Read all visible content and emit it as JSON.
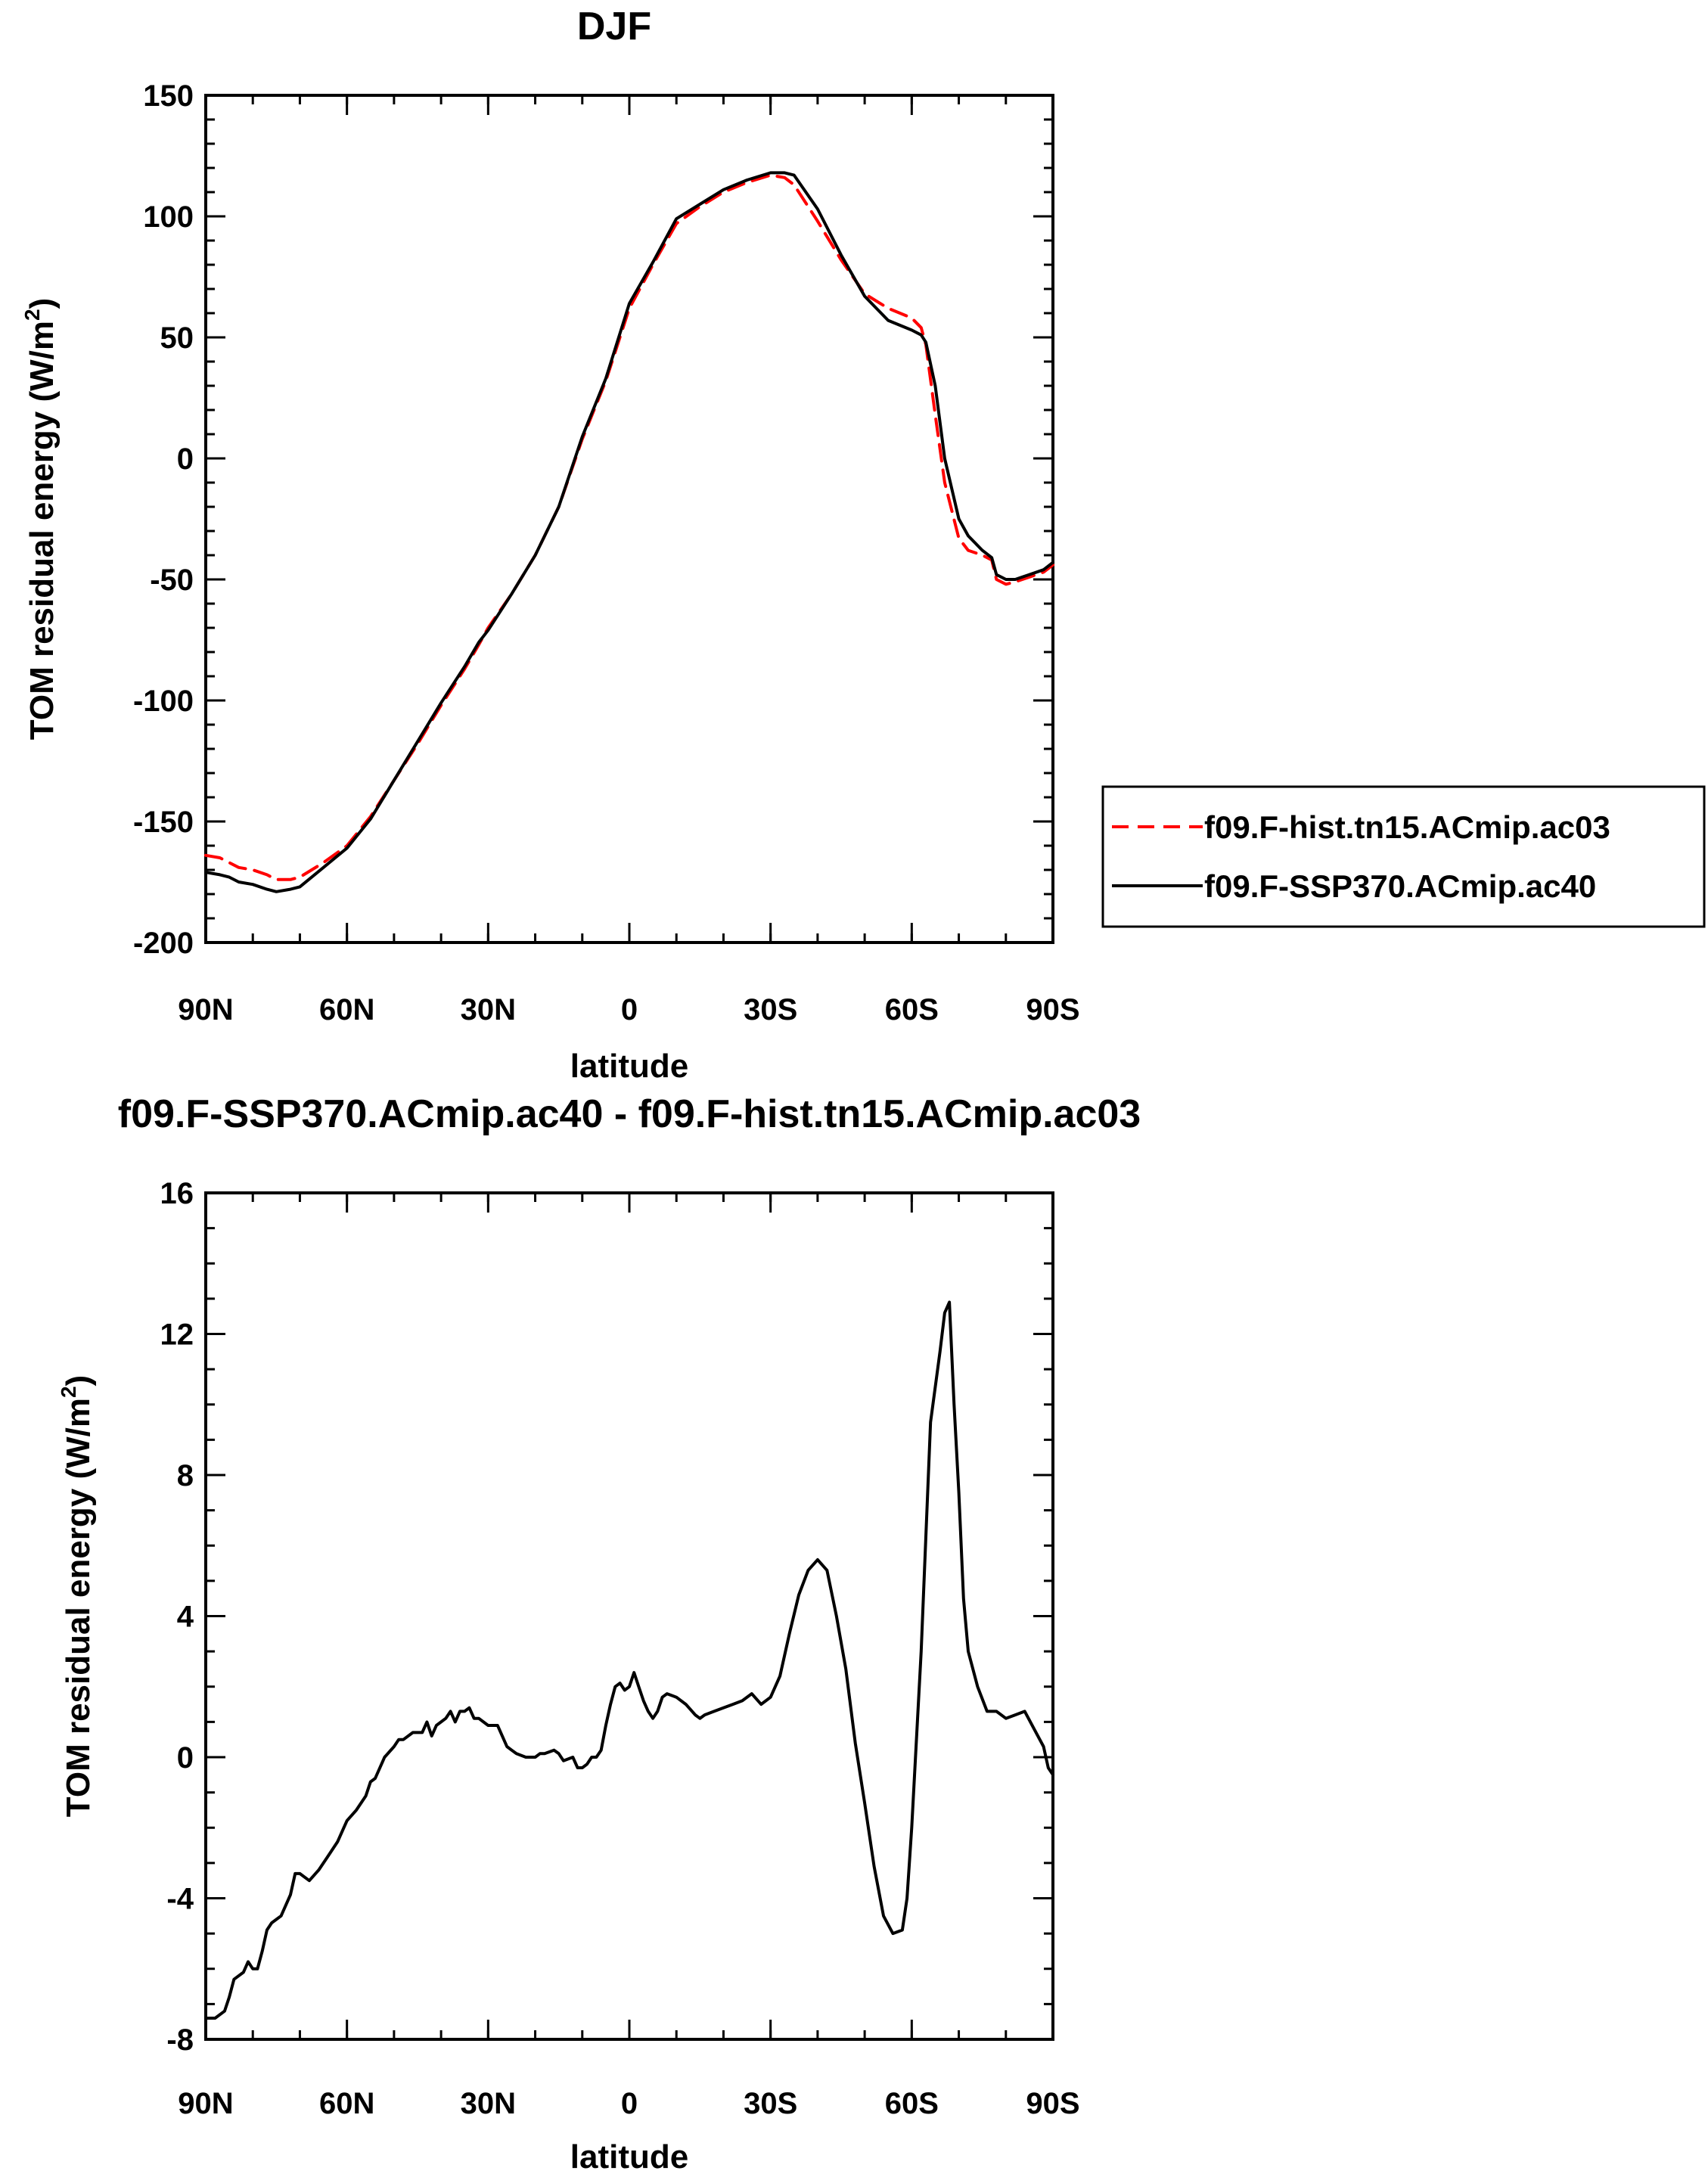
{
  "chart_data": [
    {
      "type": "line",
      "title": "DJF",
      "xlabel": "latitude",
      "ylabel": "TOM residual energy (W/m",
      "ylabel_superscript": "2",
      "ylabel_close": ")",
      "xlim": [
        90,
        -90
      ],
      "ylim": [
        -200,
        150
      ],
      "x_ticks": [
        90,
        60,
        30,
        0,
        -30,
        -60,
        -90
      ],
      "x_tick_labels": [
        "90N",
        "60N",
        "30N",
        "0",
        "30S",
        "60S",
        "90S"
      ],
      "y_ticks": [
        -200,
        -150,
        -100,
        -50,
        0,
        50,
        100,
        150
      ],
      "y_tick_labels": [
        "-200",
        "-150",
        "-100",
        "-50",
        "0",
        "50",
        "100",
        "150"
      ],
      "y_minor_step": 10,
      "x_minor_step": 10,
      "legend_position": "right-lower-outside",
      "series": [
        {
          "name": "f09.F-hist.tn15.ACmip.ac03",
          "color": "#ff0000",
          "dash": "dashed",
          "x": [
            90,
            87,
            85,
            83,
            80,
            77,
            75,
            72,
            70,
            65,
            60,
            55,
            50,
            45,
            40,
            35,
            32,
            30,
            25,
            20,
            15,
            10,
            5,
            0,
            -5,
            -10,
            -15,
            -20,
            -25,
            -30,
            -33,
            -35,
            -40,
            -45,
            -50,
            -55,
            -60,
            -62,
            -63,
            -65,
            -67,
            -70,
            -72,
            -75,
            -77,
            -78,
            -80,
            -82,
            -85,
            -88,
            -90
          ],
          "values": [
            -164,
            -165,
            -167,
            -169,
            -170,
            -172,
            -174,
            -174,
            -173,
            -167,
            -160,
            -148,
            -133,
            -118,
            -102,
            -87,
            -77,
            -70,
            -56,
            -40,
            -20,
            8,
            32,
            62,
            80,
            97,
            104,
            110,
            114,
            117,
            116,
            113,
            98,
            82,
            68,
            62,
            58,
            54,
            47,
            18,
            -10,
            -33,
            -38,
            -40,
            -42,
            -50,
            -52,
            -51,
            -49,
            -47,
            -44
          ]
        },
        {
          "name": "f09.F-SSP370.ACmip.ac40",
          "color": "#000000",
          "dash": "solid",
          "x": [
            90,
            87,
            85,
            83,
            80,
            77,
            75,
            72,
            70,
            65,
            60,
            55,
            50,
            45,
            40,
            35,
            32,
            30,
            25,
            20,
            15,
            10,
            5,
            0,
            -5,
            -10,
            -15,
            -20,
            -25,
            -30,
            -33,
            -35,
            -40,
            -45,
            -50,
            -55,
            -60,
            -62,
            -63,
            -65,
            -67,
            -70,
            -72,
            -75,
            -77,
            -78,
            -80,
            -82,
            -85,
            -88,
            -90
          ],
          "values": [
            -171,
            -172,
            -173,
            -175,
            -176,
            -178,
            -179,
            -178,
            -177,
            -169,
            -161,
            -149,
            -133,
            -117,
            -101,
            -86,
            -76,
            -71,
            -56,
            -40,
            -20,
            9,
            33,
            64,
            81,
            99,
            105,
            111,
            115,
            118,
            118,
            117,
            103,
            84,
            67,
            57,
            53,
            51,
            48,
            30,
            0,
            -25,
            -32,
            -38,
            -41,
            -48,
            -50,
            -50,
            -48,
            -46,
            -43
          ]
        }
      ]
    },
    {
      "type": "line",
      "title": "f09.F-SSP370.ACmip.ac40 - f09.F-hist.tn15.ACmip.ac03",
      "xlabel": "latitude",
      "ylabel": "TOM residual energy (W/m",
      "ylabel_superscript": "2",
      "ylabel_close": ")",
      "xlim": [
        90,
        -90
      ],
      "ylim": [
        -8,
        16
      ],
      "x_ticks": [
        90,
        60,
        30,
        0,
        -30,
        -60,
        -90
      ],
      "x_tick_labels": [
        "90N",
        "60N",
        "30N",
        "0",
        "30S",
        "60S",
        "90S"
      ],
      "y_ticks": [
        -8,
        -4,
        0,
        4,
        8,
        12,
        16
      ],
      "y_tick_labels": [
        "-8",
        "-4",
        "0",
        "4",
        "8",
        "12",
        "16"
      ],
      "y_minor_step": 1,
      "x_minor_step": 10,
      "series": [
        {
          "name": "f09.F-SSP370.ACmip.ac40 - f09.F-hist.tn15.ACmip.ac03",
          "color": "#000000",
          "dash": "solid",
          "x": [
            90,
            88,
            86,
            85,
            84,
            82,
            81,
            80,
            79,
            78,
            77,
            76,
            75,
            74,
            72,
            71,
            70,
            68,
            66,
            64,
            62,
            60,
            58,
            56,
            55,
            54,
            52,
            50,
            49,
            48,
            46,
            45,
            44,
            43,
            42,
            41,
            40,
            39,
            38,
            37,
            36,
            35,
            34,
            33,
            32,
            30,
            28,
            26,
            25,
            24,
            22,
            20,
            19,
            18,
            16,
            15,
            14,
            12,
            11,
            10,
            9,
            8,
            7,
            6,
            5,
            4,
            3,
            2,
            1,
            0,
            -1,
            -2,
            -3,
            -4,
            -5,
            -6,
            -7,
            -8,
            -10,
            -12,
            -14,
            -15,
            -16,
            -18,
            -20,
            -22,
            -24,
            -26,
            -28,
            -30,
            -32,
            -34,
            -36,
            -38,
            -40,
            -42,
            -44,
            -46,
            -48,
            -50,
            -52,
            -54,
            -56,
            -58,
            -59,
            -60,
            -62,
            -64,
            -66,
            -67,
            -68,
            -69,
            -70,
            -71,
            -72,
            -74,
            -76,
            -78,
            -80,
            -82,
            -84,
            -86,
            -88,
            -89,
            -90
          ],
          "values": [
            -7.4,
            -7.4,
            -7.2,
            -6.8,
            -6.3,
            -6.1,
            -5.8,
            -6.0,
            -6.0,
            -5.5,
            -4.9,
            -4.7,
            -4.6,
            -4.5,
            -3.9,
            -3.3,
            -3.3,
            -3.5,
            -3.2,
            -2.8,
            -2.4,
            -1.8,
            -1.5,
            -1.1,
            -0.7,
            -0.6,
            0.0,
            0.3,
            0.5,
            0.5,
            0.7,
            0.7,
            0.7,
            1.0,
            0.6,
            0.9,
            1.0,
            1.1,
            1.3,
            1.0,
            1.3,
            1.3,
            1.4,
            1.1,
            1.1,
            0.9,
            0.9,
            0.3,
            0.2,
            0.1,
            0.0,
            0.0,
            0.1,
            0.1,
            0.2,
            0.1,
            -0.1,
            0.0,
            -0.3,
            -0.3,
            -0.2,
            0.0,
            0.0,
            0.2,
            0.9,
            1.5,
            2.0,
            2.1,
            1.9,
            2.0,
            2.4,
            2.0,
            1.6,
            1.3,
            1.1,
            1.3,
            1.7,
            1.8,
            1.7,
            1.5,
            1.2,
            1.1,
            1.2,
            1.3,
            1.4,
            1.5,
            1.6,
            1.8,
            1.5,
            1.7,
            2.3,
            3.5,
            4.6,
            5.3,
            5.6,
            5.3,
            4.0,
            2.5,
            0.4,
            -1.3,
            -3.1,
            -4.5,
            -5.0,
            -4.9,
            -4.0,
            -2.0,
            3.0,
            9.5,
            11.5,
            12.6,
            12.9,
            10.0,
            7.5,
            4.5,
            3.0,
            2.0,
            1.3,
            1.3,
            1.1,
            1.2,
            1.3,
            0.8,
            0.3,
            -0.3,
            -0.5
          ]
        }
      ]
    }
  ]
}
